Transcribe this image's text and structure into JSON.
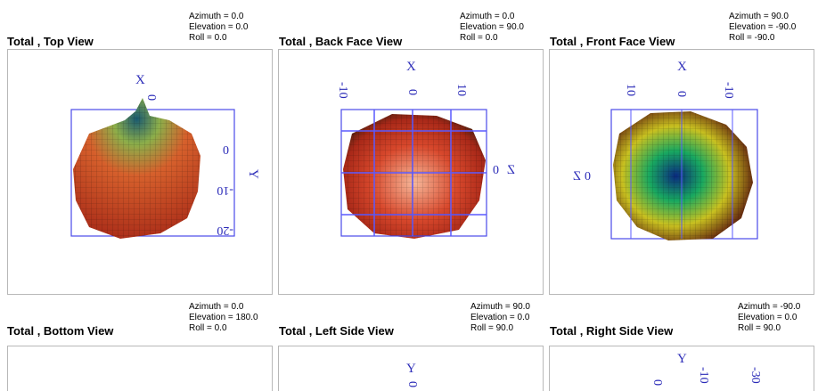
{
  "panels": [
    {
      "title": "Total , Top View",
      "params": [
        "Azimuth = 0.0",
        "Elevation = 0.0",
        "Roll = 0.0"
      ],
      "axis_labels": [
        "X",
        "Y"
      ],
      "tick_labels": [
        "0",
        "0",
        "-10",
        "-20"
      ]
    },
    {
      "title": "Total , Back Face View",
      "params": [
        "Azimuth = 0.0",
        "Elevation = 90.0",
        "Roll = 0.0"
      ],
      "axis_labels": [
        "X",
        "Z"
      ],
      "tick_labels": [
        "-10",
        "0",
        "10",
        "0"
      ]
    },
    {
      "title": "Total , Front Face View",
      "params": [
        "Azimuth = 90.0",
        "Elevation = -90.0",
        "Roll = -90.0"
      ],
      "axis_labels": [
        "X",
        "Z"
      ],
      "tick_labels": [
        "10",
        "0",
        "-10",
        "0"
      ]
    },
    {
      "title": "Total , Bottom View",
      "params": [
        "Azimuth = 0.0",
        "Elevation = 180.0",
        "Roll = 0.0"
      ]
    },
    {
      "title": "Total , Left Side View",
      "params": [
        "Azimuth = 90.0",
        "Elevation = 0.0",
        "Roll = 90.0"
      ],
      "axis_labels": [
        "Y"
      ],
      "tick_labels": [
        "0"
      ]
    },
    {
      "title": "Total , Right Side View",
      "params": [
        "Azimuth = -90.0",
        "Elevation = 0.0",
        "Roll = 90.0"
      ],
      "axis_labels": [
        "Y"
      ],
      "tick_labels": [
        "0",
        "-10",
        "-30"
      ]
    }
  ]
}
